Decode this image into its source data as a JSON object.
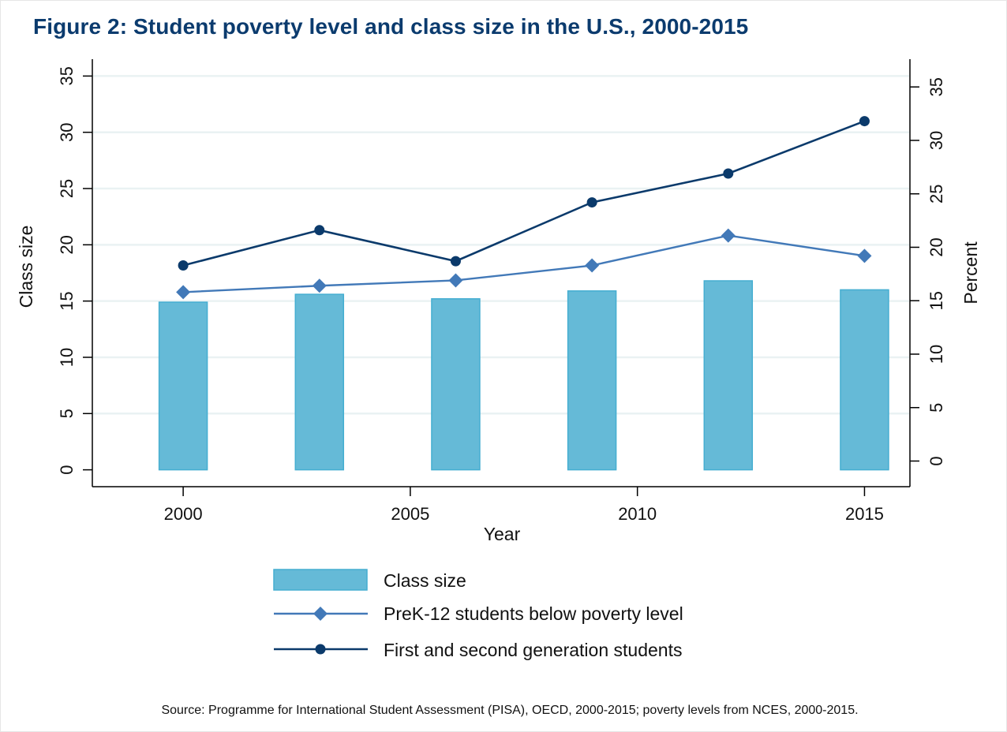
{
  "chart_data": {
    "type": "bar+line",
    "title": "Figure 2: Student poverty level and class size in the U.S., 2000-2015",
    "xlabel": "Year",
    "ylabel_left": "Class size",
    "ylabel_right": "Percent",
    "x": [
      2000,
      2003,
      2006,
      2009,
      2012,
      2015
    ],
    "x_ticks": [
      2000,
      2005,
      2010,
      2015
    ],
    "x_tick_labels": [
      "2000",
      "2005",
      "2010",
      "2015"
    ],
    "xlim": [
      1998,
      2016
    ],
    "y_left_ticks": [
      0,
      5,
      10,
      15,
      20,
      25,
      30,
      35
    ],
    "y_left_tick_labels": [
      "0",
      "5",
      "10",
      "15",
      "20",
      "25",
      "30",
      "35"
    ],
    "y_left_range": [
      -1.5,
      36.5
    ],
    "y_right_ticks": [
      0,
      5,
      10,
      15,
      20,
      25,
      30,
      35
    ],
    "y_right_tick_labels": [
      "0",
      "5",
      "10",
      "15",
      "20",
      "25",
      "30",
      "35"
    ],
    "y_right_range": [
      -2.4,
      37.6
    ],
    "grid": true,
    "legend_position": "bottom",
    "series": [
      {
        "name": "Class size",
        "type": "bar",
        "axis": "left",
        "color": "#65bad7",
        "edge_color": "#45aed1",
        "values": [
          14.9,
          15.6,
          15.2,
          15.9,
          16.8,
          16.0
        ]
      },
      {
        "name": "PreK-12 students below poverty level",
        "type": "line",
        "marker": "diamond",
        "axis": "right",
        "color": "#4279b8",
        "values": [
          15.8,
          16.4,
          16.9,
          18.3,
          21.1,
          19.2
        ]
      },
      {
        "name": "First and second generation students",
        "type": "line",
        "marker": "circle",
        "axis": "right",
        "color": "#0b3a6b",
        "values": [
          18.3,
          21.6,
          18.7,
          24.2,
          26.9,
          31.8
        ]
      }
    ],
    "source": "Source: Programme for International Student Assessment (PISA), OECD, 2000-2015; poverty levels from NCES, 2000-2015."
  }
}
